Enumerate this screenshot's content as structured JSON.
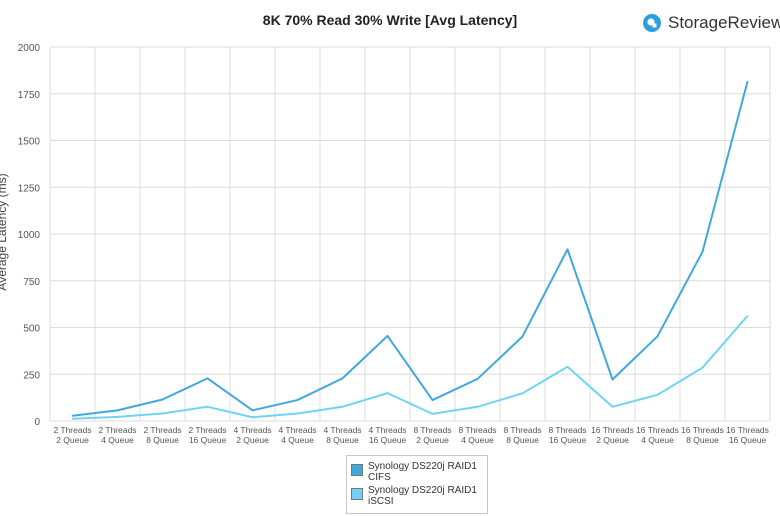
{
  "chart_data": {
    "type": "line",
    "title": "8K 70% Read 30% Write [Avg Latency]",
    "ylabel": "Average Latency (ms)",
    "xlabel": "",
    "ylim": [
      0,
      2000
    ],
    "yticks": [
      "0",
      "250",
      "500",
      "750",
      "1000",
      "1250",
      "1500",
      "1750",
      "2000"
    ],
    "grid": true,
    "legend_position": "bottom",
    "categories": [
      "2 Threads\n2 Queue",
      "2 Threads\n4 Queue",
      "2 Threads\n8 Queue",
      "2 Threads\n16 Queue",
      "4 Threads\n2 Queue",
      "4 Threads\n4 Queue",
      "4 Threads\n8 Queue",
      "4 Threads\n16 Queue",
      "8 Threads\n2 Queue",
      "8 Threads\n4 Queue",
      "8 Threads\n8 Queue",
      "8 Threads\n16 Queue",
      "16 Threads\n2 Queue",
      "16 Threads\n4 Queue",
      "16 Threads\n8 Queue",
      "16 Threads\n16 Queue"
    ],
    "series": [
      {
        "name": "Synology DS220j RAID1\nCIFS",
        "color": "#41a8dc",
        "values": [
          28,
          57,
          115,
          228,
          57,
          112,
          228,
          455,
          112,
          225,
          452,
          918,
          222,
          453,
          905,
          1815
        ]
      },
      {
        "name": "Synology DS220j RAID1\niSCSI",
        "color": "#70d3f5",
        "values": [
          12,
          22,
          40,
          76,
          20,
          40,
          76,
          149,
          38,
          76,
          148,
          290,
          76,
          140,
          285,
          562
        ]
      }
    ]
  },
  "brand": {
    "name": "StorageReview",
    "logo_color": "#2b9fe0"
  }
}
